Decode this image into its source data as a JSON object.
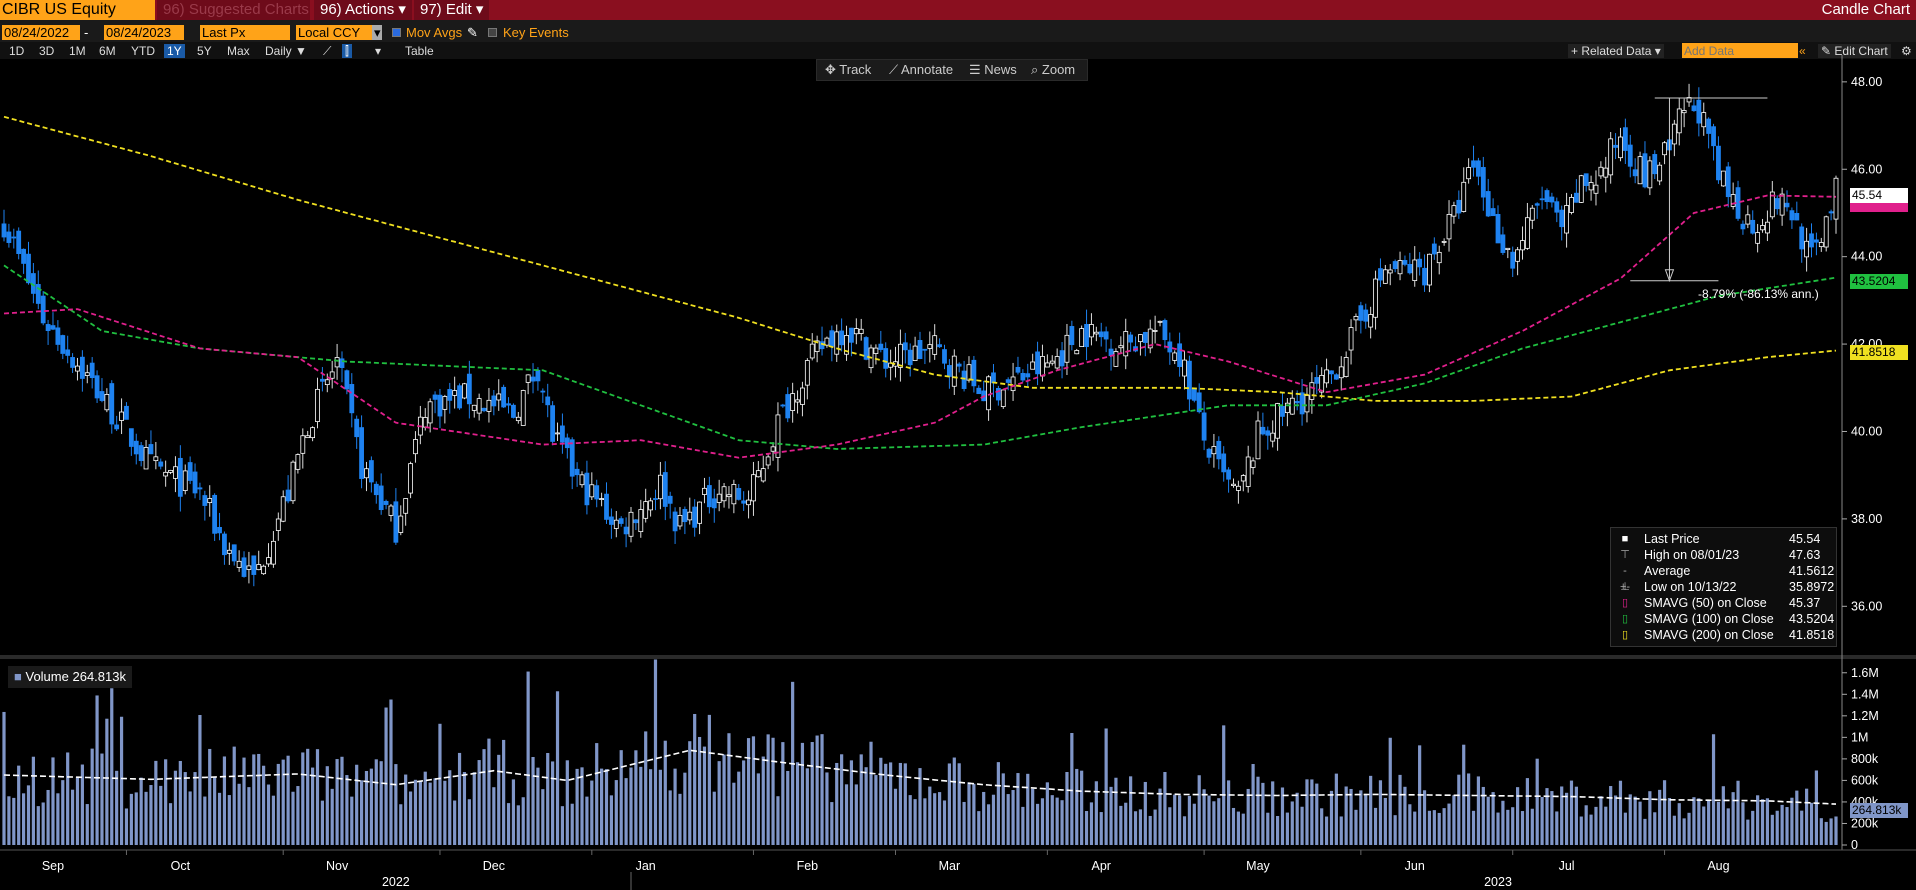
{
  "toolbar": {
    "ticker": "CIBR US Equity",
    "suggested_charts": "96) Suggested Charts",
    "actions": "96) Actions ▾",
    "edit": "97) Edit ▾",
    "chart_title": "Candle Chart",
    "start_date": "08/24/2022",
    "end_date": "08/24/2023",
    "field": "Last Px",
    "currency": "Local CCY",
    "mov_avgs": "Mov Avgs",
    "key_events": "Key Events",
    "periods": [
      "1D",
      "3D",
      "1M",
      "6M",
      "YTD",
      "1Y",
      "5Y",
      "Max"
    ],
    "selected_period": "1Y",
    "frequency": "Daily ▼",
    "table": "Table",
    "related_data": "+ Related Data ▾",
    "add_data_placeholder": "Add Data",
    "edit_chart": "Edit Chart",
    "track": "Track",
    "annotate": "Annotate",
    "news": "News",
    "zoom": "Zoom"
  },
  "legend": {
    "last_price": {
      "label": "Last Price",
      "value": "45.54"
    },
    "high": {
      "label": "High on 08/01/23",
      "value": "47.63"
    },
    "average": {
      "label": "Average",
      "value": "41.5612"
    },
    "low": {
      "label": "Low on 10/13/22",
      "value": "35.8972"
    },
    "sma50": {
      "label": "SMAVG (50)  on Close",
      "value": "45.37"
    },
    "sma100": {
      "label": "SMAVG (100)  on Close",
      "value": "43.5204"
    },
    "sma200": {
      "label": "SMAVG (200)  on Close",
      "value": "41.8518"
    }
  },
  "annotation": {
    "text": "-8.79% (-86.13% ann.)"
  },
  "volume_label": "Volume",
  "volume_value": "264.813k",
  "price_tags": {
    "last": "45.54",
    "sma100": "43.5204",
    "sma200": "41.8518"
  },
  "colors": {
    "up": "#ffffff",
    "down": "#1e82f0",
    "sma50": "#e0208c",
    "sma100": "#20c040",
    "sma200": "#f0e020",
    "volume": "#8096c8"
  },
  "chart_data": {
    "type": "candlestick",
    "ylim": [
      35,
      48.5
    ],
    "yticks": [
      "48.00",
      "46.00",
      "44.00",
      "42.00",
      "40.00",
      "38.00",
      "36.00"
    ],
    "ytick_values": [
      48,
      46,
      44,
      42,
      40,
      38,
      36
    ],
    "month_labels": [
      "Sep",
      "Oct",
      "Nov",
      "Dec",
      "Jan",
      "Feb",
      "Mar",
      "Apr",
      "May",
      "Jun",
      "Jul",
      "Aug"
    ],
    "year_labels": [
      "2022",
      "2023"
    ],
    "price_anchors": [
      [
        0,
        44.8
      ],
      [
        8,
        42.6
      ],
      [
        18,
        41.1
      ],
      [
        30,
        39.2
      ],
      [
        40,
        38.6
      ],
      [
        45,
        37.4
      ],
      [
        51,
        36.6
      ],
      [
        58,
        38.6
      ],
      [
        62,
        40.2
      ],
      [
        68,
        41.6
      ],
      [
        73,
        39.2
      ],
      [
        80,
        37.8
      ],
      [
        86,
        40.6
      ],
      [
        95,
        40.8
      ],
      [
        104,
        40.4
      ],
      [
        109,
        41.5
      ],
      [
        112,
        39.9
      ],
      [
        117,
        38.9
      ],
      [
        126,
        37.8
      ],
      [
        134,
        38.8
      ],
      [
        138,
        37.8
      ],
      [
        146,
        38.7
      ],
      [
        152,
        38.4
      ],
      [
        158,
        40.2
      ],
      [
        164,
        41.5
      ],
      [
        168,
        42.1
      ],
      [
        172,
        42.4
      ],
      [
        180,
        41.6
      ],
      [
        190,
        41.9
      ],
      [
        200,
        40.9
      ],
      [
        207,
        41.2
      ],
      [
        214,
        41.6
      ],
      [
        220,
        42.3
      ],
      [
        228,
        42.0
      ],
      [
        235,
        42.3
      ],
      [
        240,
        41.8
      ],
      [
        245,
        39.8
      ],
      [
        249,
        38.9
      ],
      [
        252,
        38.5
      ],
      [
        256,
        39.9
      ],
      [
        263,
        40.6
      ],
      [
        270,
        41.1
      ],
      [
        276,
        42.3
      ],
      [
        282,
        43.7
      ],
      [
        290,
        43.7
      ],
      [
        296,
        44.9
      ],
      [
        300,
        46.1
      ],
      [
        304,
        44.8
      ],
      [
        308,
        43.9
      ],
      [
        314,
        45.4
      ],
      [
        318,
        44.6
      ],
      [
        322,
        45.6
      ],
      [
        326,
        45.9
      ],
      [
        330,
        46.8
      ],
      [
        335,
        45.8
      ],
      [
        340,
        46.4
      ],
      [
        343,
        47.4
      ],
      [
        346,
        47.4
      ],
      [
        350,
        45.8
      ],
      [
        354,
        45.1
      ],
      [
        357,
        44.7
      ],
      [
        362,
        45.3
      ],
      [
        365,
        45.0
      ],
      [
        369,
        43.9
      ],
      [
        372,
        44.9
      ],
      [
        374,
        45.54
      ]
    ],
    "sma50": [
      [
        0,
        42.7
      ],
      [
        15,
        42.8
      ],
      [
        40,
        41.9
      ],
      [
        60,
        41.7
      ],
      [
        80,
        40.2
      ],
      [
        110,
        39.7
      ],
      [
        130,
        39.8
      ],
      [
        150,
        39.4
      ],
      [
        170,
        39.7
      ],
      [
        190,
        40.2
      ],
      [
        200,
        40.8
      ],
      [
        215,
        41.4
      ],
      [
        235,
        42.0
      ],
      [
        250,
        41.6
      ],
      [
        270,
        40.9
      ],
      [
        290,
        41.3
      ],
      [
        310,
        42.3
      ],
      [
        330,
        43.5
      ],
      [
        345,
        45.0
      ],
      [
        360,
        45.4
      ],
      [
        374,
        45.37
      ]
    ],
    "sma100": [
      [
        0,
        43.8
      ],
      [
        20,
        42.3
      ],
      [
        40,
        41.9
      ],
      [
        70,
        41.6
      ],
      [
        110,
        41.4
      ],
      [
        150,
        39.8
      ],
      [
        170,
        39.6
      ],
      [
        200,
        39.7
      ],
      [
        220,
        40.1
      ],
      [
        250,
        40.6
      ],
      [
        270,
        40.6
      ],
      [
        290,
        41.1
      ],
      [
        310,
        41.9
      ],
      [
        330,
        42.5
      ],
      [
        350,
        43.1
      ],
      [
        374,
        43.5204
      ]
    ],
    "sma200": [
      [
        0,
        47.2
      ],
      [
        30,
        46.3
      ],
      [
        60,
        45.3
      ],
      [
        90,
        44.4
      ],
      [
        120,
        43.5
      ],
      [
        150,
        42.6
      ],
      [
        170,
        41.9
      ],
      [
        190,
        41.3
      ],
      [
        210,
        41.0
      ],
      [
        240,
        41.0
      ],
      [
        260,
        40.9
      ],
      [
        280,
        40.7
      ],
      [
        300,
        40.7
      ],
      [
        320,
        40.8
      ],
      [
        340,
        41.4
      ],
      [
        360,
        41.7
      ],
      [
        374,
        41.8518
      ]
    ],
    "volume_ylim": [
      0,
      1700000
    ],
    "volume_yticks": [
      "1.6M",
      "1.4M",
      "1.2M",
      "1M",
      "800k",
      "600k",
      "400k",
      "200k",
      "0"
    ],
    "volume_ytick_values": [
      1600000,
      1400000,
      1200000,
      1000000,
      800000,
      600000,
      400000,
      200000,
      0
    ],
    "volume_avg": [
      [
        0,
        650000
      ],
      [
        30,
        610000
      ],
      [
        60,
        660000
      ],
      [
        80,
        560000
      ],
      [
        100,
        690000
      ],
      [
        115,
        600000
      ],
      [
        140,
        880000
      ],
      [
        160,
        760000
      ],
      [
        180,
        650000
      ],
      [
        200,
        560000
      ],
      [
        220,
        500000
      ],
      [
        240,
        470000
      ],
      [
        260,
        460000
      ],
      [
        280,
        470000
      ],
      [
        300,
        460000
      ],
      [
        320,
        450000
      ],
      [
        340,
        420000
      ],
      [
        360,
        410000
      ],
      [
        374,
        380000
      ]
    ],
    "volume_last": 264813
  }
}
